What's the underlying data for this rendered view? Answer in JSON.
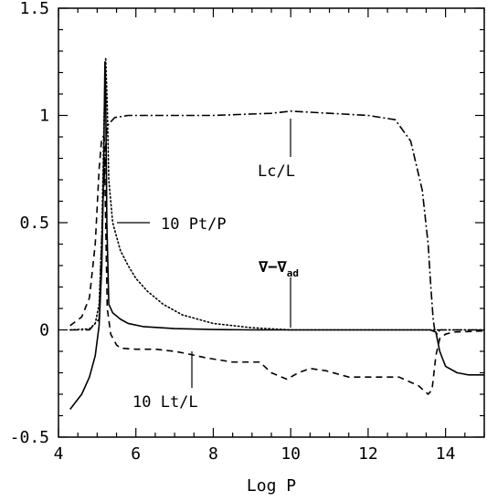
{
  "chart_data": {
    "type": "line",
    "xlabel": "Log P",
    "ylabel": "",
    "xlim": [
      4,
      15
    ],
    "ylim": [
      -0.5,
      1.5
    ],
    "x_ticks": [
      4,
      6,
      8,
      10,
      12,
      14
    ],
    "y_ticks": [
      -0.5,
      0,
      0.5,
      1,
      1.5
    ],
    "x_tick_labels": [
      "4",
      "6",
      "8",
      "10",
      "12",
      "14"
    ],
    "y_tick_labels": [
      "-0.5",
      "0",
      "0.5",
      "1",
      "1.5"
    ],
    "grid": false,
    "series": [
      {
        "key": "nabla",
        "style": "solid",
        "x": [
          4.3,
          4.6,
          4.8,
          4.95,
          5.05,
          5.12,
          5.17,
          5.2,
          5.22,
          5.25,
          5.3,
          5.4,
          5.6,
          5.8,
          6.2,
          7,
          8,
          9,
          10,
          11,
          12,
          13,
          13.6,
          13.75,
          13.85,
          14,
          14.3,
          14.6,
          15
        ],
        "y": [
          -0.37,
          -0.3,
          -0.22,
          -0.12,
          0.02,
          0.3,
          0.8,
          1.25,
          1.1,
          0.5,
          0.12,
          0.08,
          0.05,
          0.03,
          0.015,
          0.006,
          0.002,
          0,
          0,
          0,
          0,
          0,
          0,
          -0.01,
          -0.1,
          -0.17,
          -0.2,
          -0.21,
          -0.21
        ]
      },
      {
        "key": "pt",
        "style": "dotted",
        "x": [
          4.3,
          4.8,
          4.95,
          5.05,
          5.12,
          5.18,
          5.22,
          5.26,
          5.3,
          5.4,
          5.6,
          5.8,
          6,
          6.3,
          6.7,
          7.2,
          8,
          9,
          10,
          12,
          13.5,
          14,
          15
        ],
        "y": [
          0,
          0.005,
          0.03,
          0.12,
          0.45,
          1.0,
          1.27,
          1.05,
          0.7,
          0.5,
          0.37,
          0.3,
          0.24,
          0.18,
          0.12,
          0.07,
          0.03,
          0.01,
          0,
          0,
          0,
          0,
          0
        ]
      },
      {
        "key": "lt",
        "style": "dashed",
        "x": [
          4.3,
          4.6,
          4.8,
          4.95,
          5.05,
          5.12,
          5.18,
          5.22,
          5.26,
          5.35,
          5.5,
          5.6,
          6,
          6.5,
          7,
          7.3,
          7.8,
          8.5,
          9.2,
          9.5,
          9.9,
          10.2,
          10.5,
          10.9,
          11.5,
          12.2,
          12.8,
          13.3,
          13.55,
          13.65,
          13.75,
          13.85,
          14,
          14.2,
          15
        ],
        "y": [
          0.02,
          0.06,
          0.15,
          0.4,
          0.75,
          0.9,
          0.9,
          0.5,
          0.1,
          -0.02,
          -0.07,
          -0.085,
          -0.09,
          -0.09,
          -0.1,
          -0.11,
          -0.13,
          -0.15,
          -0.15,
          -0.2,
          -0.23,
          -0.2,
          -0.18,
          -0.19,
          -0.22,
          -0.22,
          -0.22,
          -0.26,
          -0.3,
          -0.28,
          -0.12,
          -0.04,
          -0.02,
          -0.01,
          -0.005
        ]
      },
      {
        "key": "lc",
        "style": "dot-dash",
        "x": [
          4.3,
          4.8,
          5.05,
          5.15,
          5.25,
          5.45,
          5.8,
          6.5,
          8,
          9.5,
          10,
          10.5,
          12,
          12.7,
          13.1,
          13.4,
          13.55,
          13.62,
          13.68,
          13.72,
          13.78,
          13.85,
          14,
          15
        ],
        "y": [
          0,
          0,
          0.05,
          0.6,
          0.95,
          0.99,
          1.0,
          1.0,
          1.0,
          1.01,
          1.02,
          1.015,
          1.0,
          0.98,
          0.88,
          0.65,
          0.4,
          0.2,
          0.05,
          0.0,
          -0.02,
          0,
          0,
          0
        ]
      }
    ],
    "annotations": [
      {
        "key": "lc",
        "text": "Lc/L"
      },
      {
        "key": "pt",
        "text": "10 Pt/P"
      },
      {
        "key": "lt",
        "text": "10 Lt/L"
      }
    ],
    "nabla_label": {
      "main": "∇−∇",
      "subscript": "ad"
    }
  }
}
